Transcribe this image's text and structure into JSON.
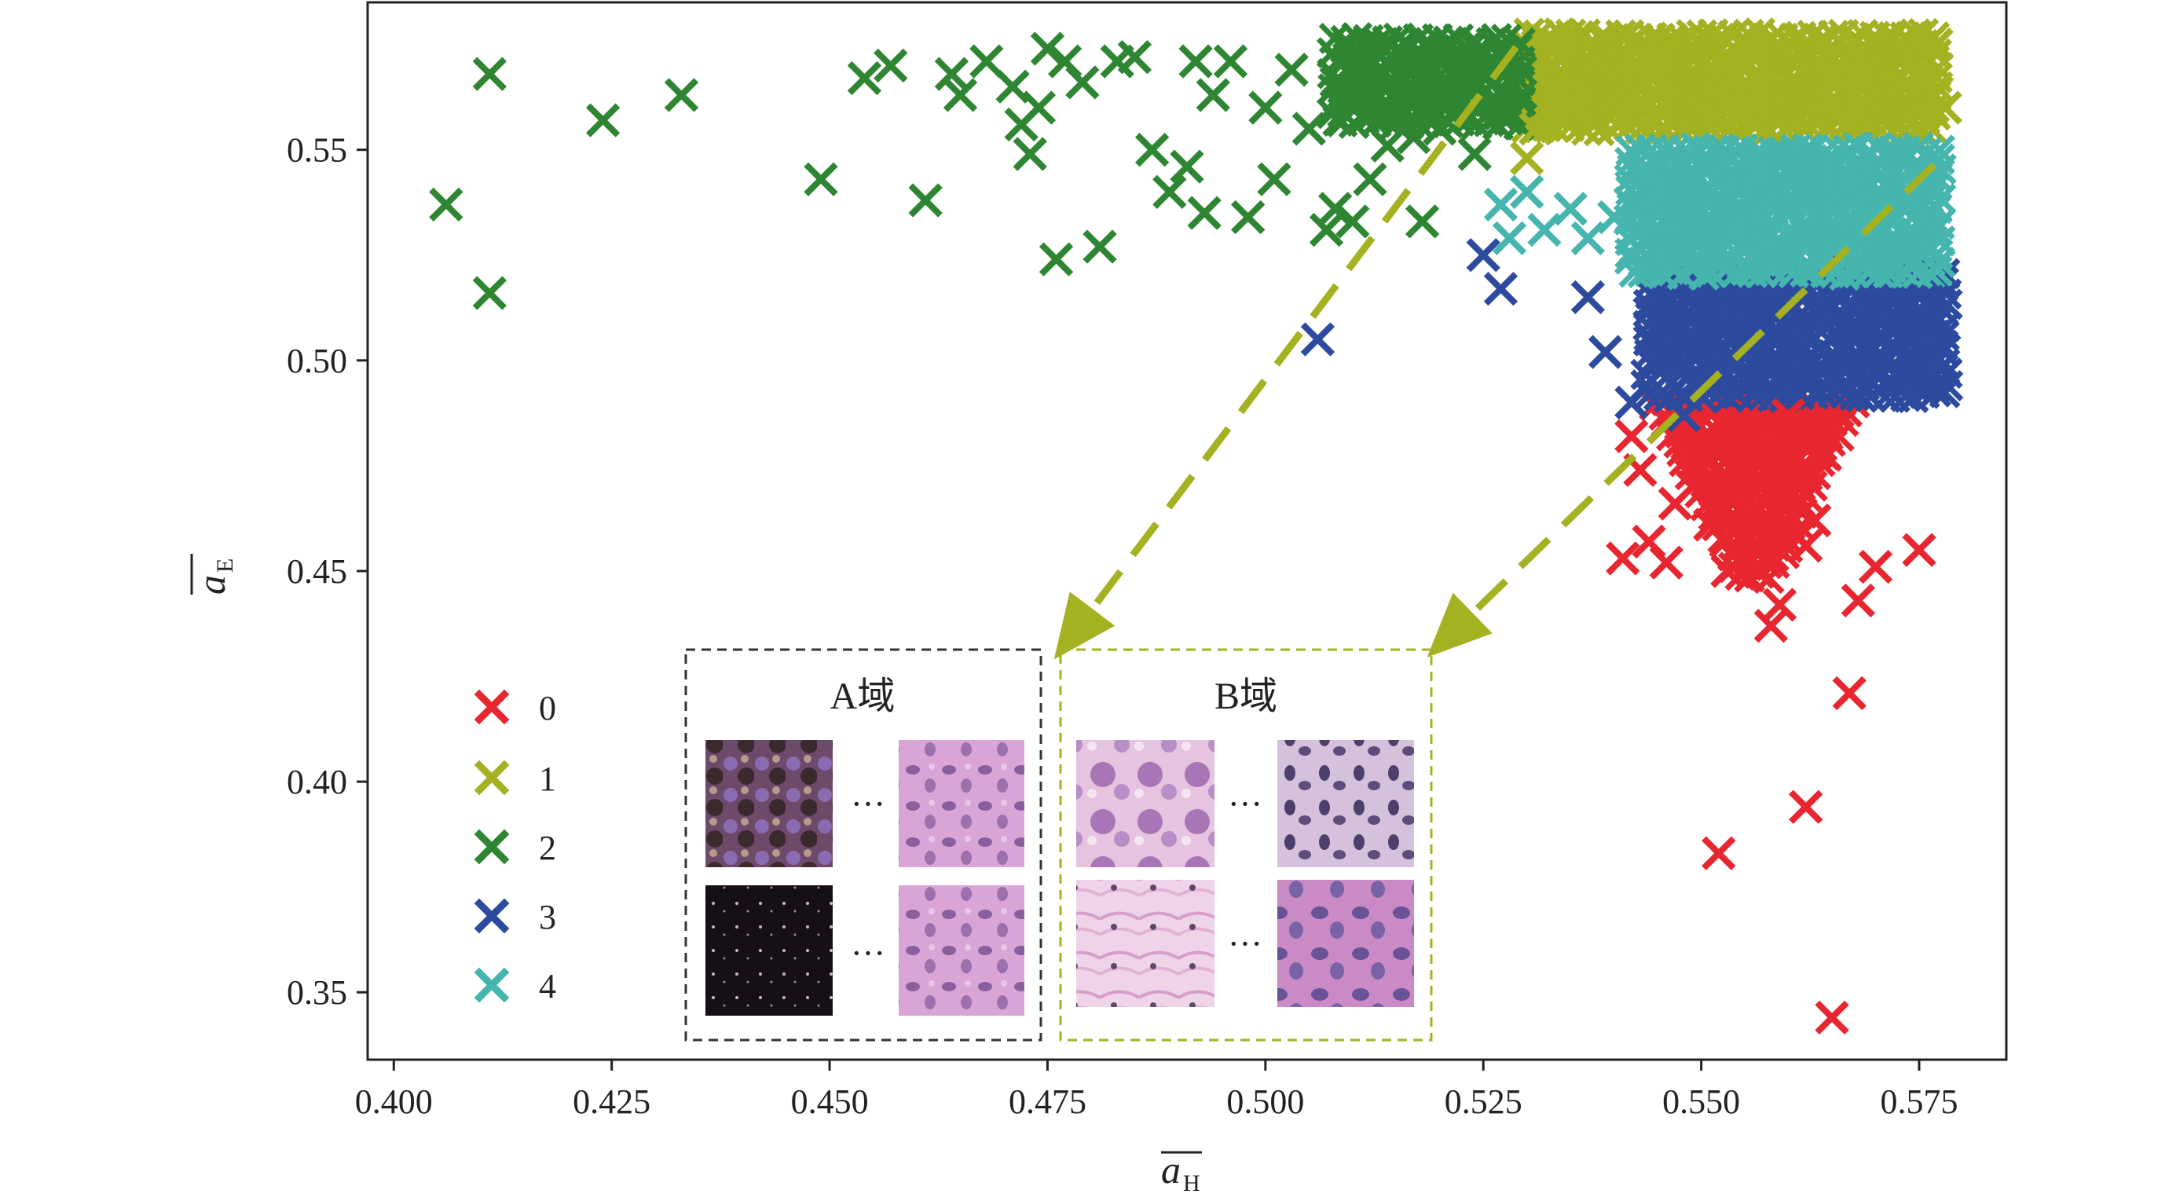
{
  "chart_data": {
    "type": "scatter",
    "xlabel": "a",
    "xlabel_sub": "H",
    "ylabel": "a",
    "ylabel_sub": "E",
    "xlim": [
      0.397,
      0.585
    ],
    "ylim": [
      0.334,
      0.585
    ],
    "xticks": [
      "0.400",
      "0.425",
      "0.450",
      "0.475",
      "0.500",
      "0.525",
      "0.550",
      "0.575"
    ],
    "xtick_values": [
      0.4,
      0.425,
      0.45,
      0.475,
      0.5,
      0.525,
      0.55,
      0.575
    ],
    "yticks": [
      "0.35",
      "0.40",
      "0.45",
      "0.50",
      "0.55"
    ],
    "ytick_values": [
      0.35,
      0.4,
      0.45,
      0.5,
      0.55
    ],
    "grid": false,
    "legend_position": "lower-left",
    "series": [
      {
        "name": "0",
        "color": "#e8262f",
        "points": [
          [
            0.542,
            0.482
          ],
          [
            0.543,
            0.474
          ],
          [
            0.541,
            0.453
          ],
          [
            0.544,
            0.457
          ],
          [
            0.546,
            0.452
          ],
          [
            0.547,
            0.466
          ],
          [
            0.549,
            0.47
          ],
          [
            0.551,
            0.461
          ],
          [
            0.553,
            0.45
          ],
          [
            0.555,
            0.457
          ],
          [
            0.557,
            0.471
          ],
          [
            0.559,
            0.477
          ],
          [
            0.561,
            0.471
          ],
          [
            0.562,
            0.456
          ],
          [
            0.563,
            0.462
          ],
          [
            0.564,
            0.478
          ],
          [
            0.56,
            0.487
          ],
          [
            0.558,
            0.437
          ],
          [
            0.559,
            0.442
          ],
          [
            0.568,
            0.443
          ],
          [
            0.57,
            0.451
          ],
          [
            0.575,
            0.455
          ],
          [
            0.567,
            0.421
          ],
          [
            0.562,
            0.394
          ],
          [
            0.552,
            0.383
          ],
          [
            0.565,
            0.344
          ]
        ]
      },
      {
        "name": "1",
        "color": "#a4b121",
        "points": [
          [
            0.53,
            0.548
          ],
          [
            0.533,
            0.575
          ],
          [
            0.536,
            0.56
          ],
          [
            0.575,
            0.567
          ],
          [
            0.577,
            0.575
          ],
          [
            0.578,
            0.56
          ],
          [
            0.531,
            0.555
          ]
        ]
      },
      {
        "name": "2",
        "color": "#2e8532",
        "points": [
          [
            0.406,
            0.537
          ],
          [
            0.411,
            0.568
          ],
          [
            0.411,
            0.516
          ],
          [
            0.424,
            0.557
          ],
          [
            0.433,
            0.563
          ],
          [
            0.449,
            0.543
          ],
          [
            0.454,
            0.567
          ],
          [
            0.457,
            0.57
          ],
          [
            0.461,
            0.538
          ],
          [
            0.464,
            0.568
          ],
          [
            0.465,
            0.563
          ],
          [
            0.468,
            0.571
          ],
          [
            0.471,
            0.565
          ],
          [
            0.472,
            0.556
          ],
          [
            0.473,
            0.549
          ],
          [
            0.474,
            0.56
          ],
          [
            0.475,
            0.574
          ],
          [
            0.476,
            0.524
          ],
          [
            0.477,
            0.571
          ],
          [
            0.479,
            0.566
          ],
          [
            0.481,
            0.527
          ],
          [
            0.483,
            0.571
          ],
          [
            0.485,
            0.572
          ],
          [
            0.487,
            0.55
          ],
          [
            0.489,
            0.54
          ],
          [
            0.491,
            0.546
          ],
          [
            0.492,
            0.571
          ],
          [
            0.493,
            0.535
          ],
          [
            0.494,
            0.563
          ],
          [
            0.496,
            0.571
          ],
          [
            0.498,
            0.534
          ],
          [
            0.5,
            0.56
          ],
          [
            0.501,
            0.543
          ],
          [
            0.503,
            0.569
          ],
          [
            0.505,
            0.555
          ],
          [
            0.507,
            0.531
          ],
          [
            0.508,
            0.536
          ],
          [
            0.51,
            0.533
          ],
          [
            0.512,
            0.543
          ],
          [
            0.514,
            0.551
          ],
          [
            0.517,
            0.553
          ],
          [
            0.518,
            0.533
          ],
          [
            0.52,
            0.555
          ],
          [
            0.522,
            0.56
          ],
          [
            0.524,
            0.549
          ]
        ]
      },
      {
        "name": "3",
        "color": "#2c4b9e",
        "points": [
          [
            0.506,
            0.505
          ],
          [
            0.525,
            0.525
          ],
          [
            0.527,
            0.517
          ],
          [
            0.537,
            0.515
          ],
          [
            0.539,
            0.502
          ],
          [
            0.542,
            0.49
          ],
          [
            0.546,
            0.5
          ],
          [
            0.548,
            0.487
          ],
          [
            0.576,
            0.514
          ],
          [
            0.575,
            0.495
          ]
        ]
      },
      {
        "name": "4",
        "color": "#45b5ae",
        "points": [
          [
            0.527,
            0.537
          ],
          [
            0.528,
            0.529
          ],
          [
            0.53,
            0.54
          ],
          [
            0.532,
            0.531
          ],
          [
            0.535,
            0.536
          ],
          [
            0.537,
            0.529
          ],
          [
            0.54,
            0.534
          ],
          [
            0.543,
            0.537
          ],
          [
            0.545,
            0.525
          ]
        ]
      }
    ],
    "dense_regions": [
      {
        "series": "0",
        "shape": "triangle",
        "x": [
          0.545,
          0.568
        ],
        "y": [
          0.448,
          0.49
        ]
      },
      {
        "series": "1",
        "shape": "rect",
        "x": [
          0.53,
          0.578
        ],
        "y": [
          0.553,
          0.577
        ]
      },
      {
        "series": "2",
        "shape": "rect",
        "x": [
          0.508,
          0.53
        ],
        "y": [
          0.555,
          0.576
        ]
      },
      {
        "series": "3",
        "shape": "rect",
        "x": [
          0.544,
          0.578
        ],
        "y": [
          0.49,
          0.521
        ]
      },
      {
        "series": "4",
        "shape": "rect",
        "x": [
          0.542,
          0.578
        ],
        "y": [
          0.52,
          0.55
        ]
      }
    ],
    "annotations": [
      {
        "label": "A域",
        "box_color": "#333333"
      },
      {
        "label": "B域",
        "box_color": "#a4b121"
      }
    ],
    "arrow_color": "#a4b121"
  }
}
